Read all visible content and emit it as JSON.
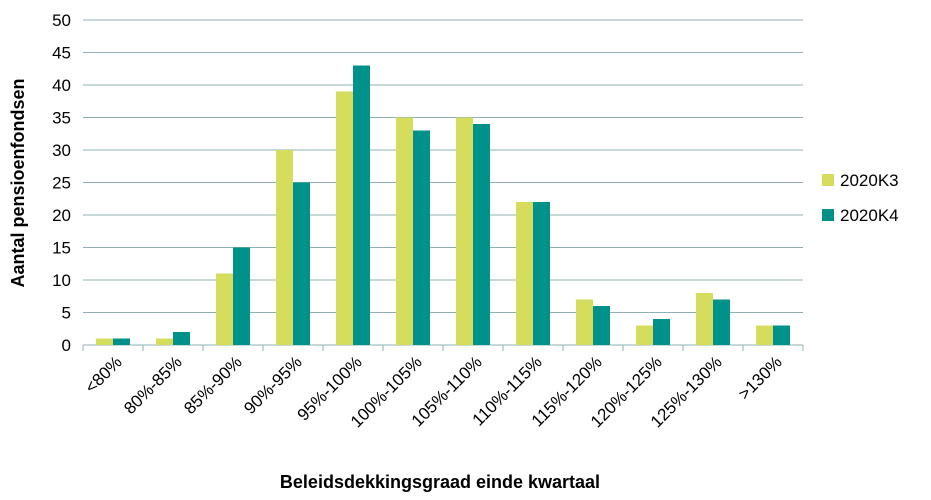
{
  "chart_data": {
    "type": "bar",
    "x_label": "Beleidsdekkingsgraad einde kwartaal",
    "y_label": "Aantal pensioenfondsen",
    "categories": [
      "<80%",
      "80%-85%",
      "85%-90%",
      "90%-95%",
      "95%-100%",
      "100%-105%",
      "105%-110%",
      "110%-115%",
      "115%-120%",
      "120%-125%",
      "125%-130%",
      ">130%"
    ],
    "series": [
      {
        "name": "2020K3",
        "color": "#d6dd5c",
        "values": [
          1,
          1,
          11,
          30,
          39,
          35,
          35,
          22,
          7,
          3,
          8,
          3
        ]
      },
      {
        "name": "2020K4",
        "color": "#00918a",
        "values": [
          1,
          2,
          15,
          25,
          43,
          33,
          34,
          22,
          6,
          4,
          7,
          3
        ]
      }
    ],
    "ylim": [
      0,
      50
    ],
    "yticks": [
      0,
      5,
      10,
      15,
      20,
      25,
      30,
      35,
      40,
      45,
      50
    ],
    "grid": true,
    "legend": "right"
  }
}
